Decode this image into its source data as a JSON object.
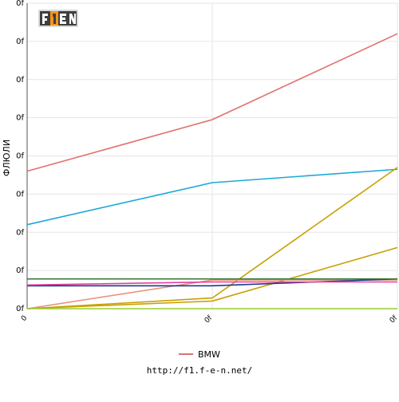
{
  "logo": {
    "text": "F1EN",
    "colors": {
      "dark": "#3f3f3f",
      "orange": "#f7941d"
    }
  },
  "footer": {
    "url": "http://f1.f-e-n.net/"
  },
  "chart_data": {
    "type": "line",
    "title": "",
    "xlabel": "",
    "ylabel": "ФЛЮЛИ",
    "x_tick_labels": [
      "0",
      "0f",
      "0f"
    ],
    "y_tick_labels": [
      "0f",
      "0f",
      "0f",
      "0f",
      "0f",
      "0f",
      "0f",
      "0f",
      "0f"
    ],
    "x": [
      0,
      1,
      2
    ],
    "ylim": [
      0,
      8
    ],
    "grid": true,
    "legend_position": "bottom-center",
    "series": [
      {
        "name": "BMW",
        "color": "#e0706e",
        "values": [
          3.6,
          4.95,
          7.2
        ]
      },
      {
        "color": "#1ba9d8",
        "values": [
          2.2,
          3.3,
          3.65
        ]
      },
      {
        "color": "#c8a000",
        "values": [
          0.0,
          0.28,
          3.7
        ]
      },
      {
        "color": "#c8a000",
        "values": [
          0.0,
          0.2,
          1.6
        ]
      },
      {
        "color": "#e8957a",
        "values": [
          0.0,
          0.75,
          0.75
        ]
      },
      {
        "color": "#1f3a8a",
        "values": [
          0.6,
          0.6,
          0.78
        ]
      },
      {
        "color": "#3b7a3b",
        "values": [
          0.78,
          0.78,
          0.78
        ]
      },
      {
        "color": "#e040a0",
        "values": [
          0.62,
          0.7,
          0.7
        ]
      },
      {
        "color": "#9acd32",
        "values": [
          0.0,
          0.0,
          0.0
        ]
      }
    ]
  }
}
